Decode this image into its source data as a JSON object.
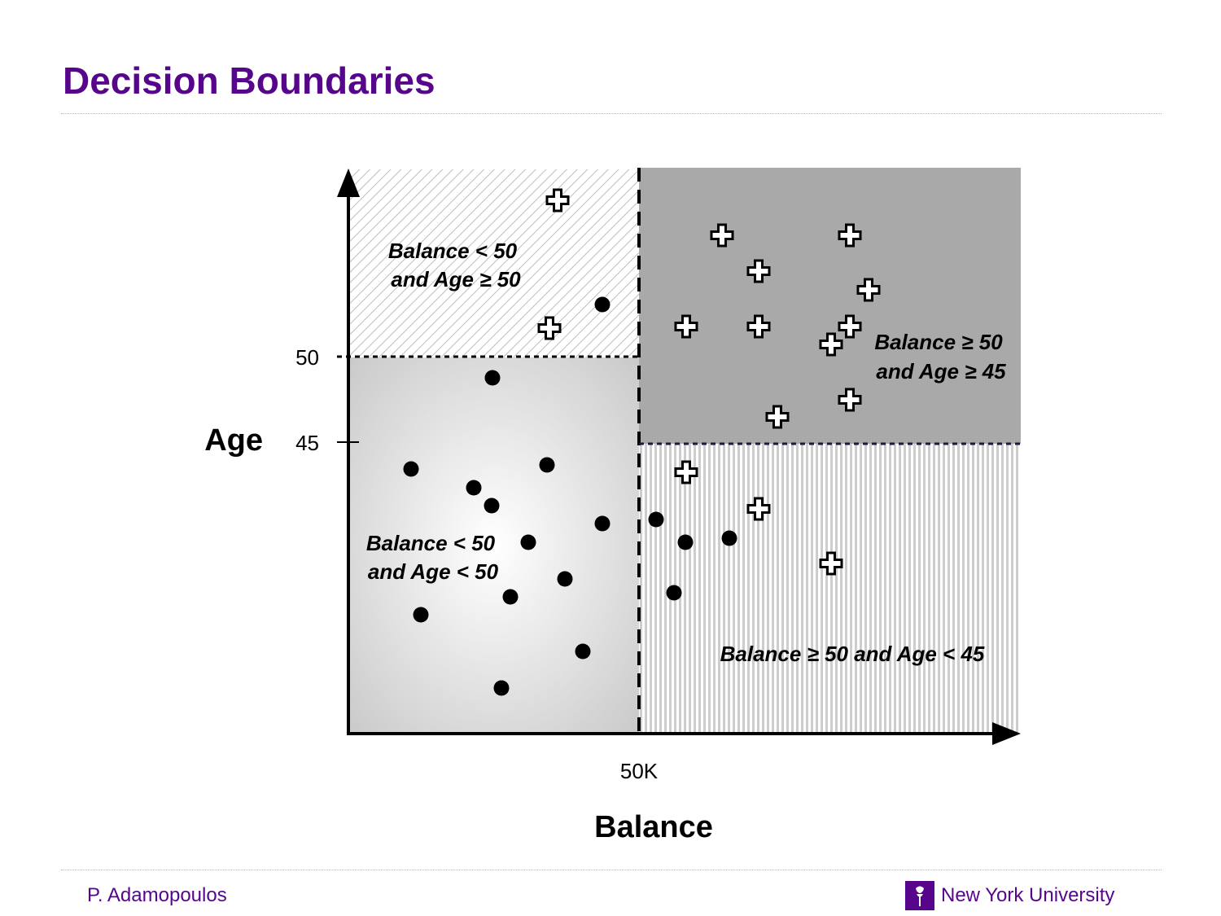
{
  "slide": {
    "title": "Decision Boundaries",
    "author": "P. Adamopoulos",
    "university": "New York University"
  },
  "diagram": {
    "x_axis_label": "Balance",
    "y_axis_label": "Age",
    "x_tick": "50K",
    "y_ticks": [
      "50",
      "45"
    ],
    "regions": [
      {
        "id": "top-left",
        "lines": [
          "Balance < 50",
          "and Age ≥ 50"
        ],
        "fill": "diagonal-hatch"
      },
      {
        "id": "bottom-left",
        "lines": [
          "Balance < 50",
          "and Age < 50"
        ],
        "fill": "radial-gray"
      },
      {
        "id": "top-right",
        "lines": [
          "Balance ≥ 50",
          "and Age ≥ 45"
        ],
        "fill": "solid-gray"
      },
      {
        "id": "bottom-right",
        "lines": [
          "Balance ≥ 50 and Age < 45"
        ],
        "fill": "vertical-hatch"
      }
    ],
    "colors": {
      "brand": "#57068c",
      "solid_region": "#a9a9a9",
      "marker": "#000000"
    }
  }
}
